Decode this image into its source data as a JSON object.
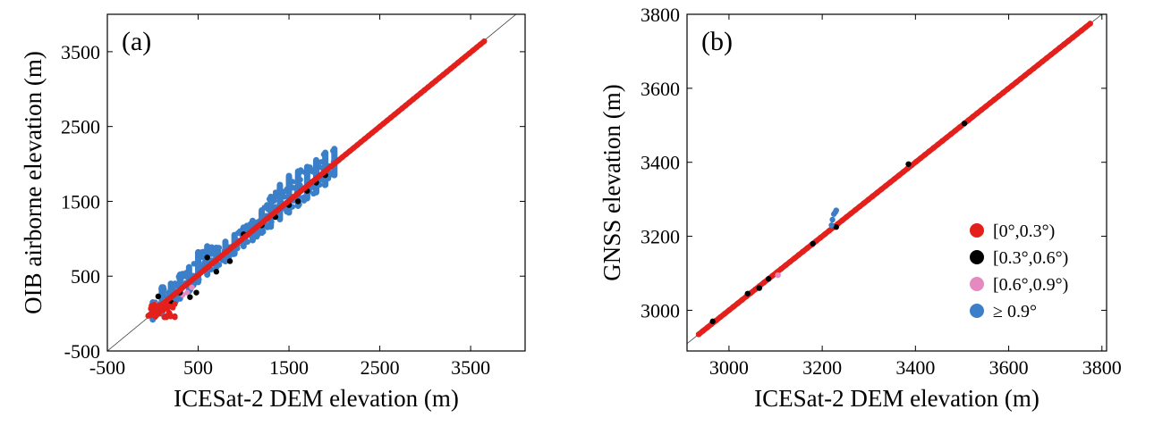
{
  "chart_data": [
    {
      "type": "scatter",
      "panel_label": "(a)",
      "xlabel": "ICESat-2 DEM elevation (m)",
      "ylabel": "OIB airborne elevation (m)",
      "xlim": [
        -500,
        4100
      ],
      "ylim": [
        -500,
        4000
      ],
      "xticks": [
        -500,
        500,
        1500,
        2500,
        3500
      ],
      "yticks": [
        -500,
        500,
        1500,
        2500,
        3500
      ],
      "reference_line": "1:1",
      "grid": false,
      "series": [
        {
          "name": "≥ 0.9°",
          "color": "#3a7fc8",
          "x": [
            0,
            100,
            200,
            300,
            400,
            500,
            600,
            700,
            800,
            900,
            1000,
            1100,
            1200,
            1300,
            1400,
            1500,
            1600,
            1700,
            1800,
            1900,
            2000
          ],
          "y_low": [
            -80,
            0,
            100,
            200,
            300,
            420,
            520,
            620,
            700,
            800,
            900,
            980,
            1080,
            1160,
            1260,
            1350,
            1440,
            1540,
            1620,
            1720,
            1850
          ],
          "y_high": [
            150,
            350,
            400,
            520,
            620,
            820,
            900,
            880,
            960,
            1050,
            1150,
            1240,
            1380,
            1560,
            1720,
            1840,
            1900,
            1960,
            2050,
            2150,
            2200
          ]
        },
        {
          "name": "[0.6°,0.9°)",
          "color": "#e58ac0",
          "x": [
            30,
            80,
            150,
            200,
            330,
            380,
            430
          ],
          "y": [
            120,
            60,
            170,
            220,
            250,
            280,
            350
          ]
        },
        {
          "name": "[0.3°,0.6°)",
          "color": "#000000",
          "x": [
            60,
            200,
            300,
            410,
            480,
            600,
            700,
            850,
            1000,
            1200,
            1350,
            1500,
            1600,
            1700,
            1800,
            1900
          ],
          "y": [
            230,
            150,
            280,
            220,
            280,
            750,
            560,
            700,
            1060,
            1180,
            1290,
            1450,
            1500,
            1640,
            1750,
            1850
          ]
        },
        {
          "name": "[0°,0.3°)",
          "color": "#e3201c",
          "x_range": [
            -50,
            3650
          ],
          "y_range": [
            -30,
            3640
          ]
        }
      ]
    },
    {
      "type": "scatter",
      "panel_label": "(b)",
      "xlabel": "ICESat-2 DEM elevation (m)",
      "ylabel": "GNSS elevation (m)",
      "xlim": [
        2910,
        3810
      ],
      "ylim": [
        2890,
        3800
      ],
      "xticks": [
        3000,
        3200,
        3400,
        3600,
        3800
      ],
      "yticks": [
        3000,
        3200,
        3400,
        3600,
        3800
      ],
      "reference_line": "1:1",
      "grid": false,
      "legend_position": "lower-right",
      "series": [
        {
          "name": "[0°,0.3°)",
          "color": "#e3201c",
          "x_range": [
            2935,
            3775
          ],
          "y_range": [
            2935,
            3775
          ]
        },
        {
          "name": "[0.3°,0.6°)",
          "color": "#000000",
          "x": [
            2965,
            3040,
            3065,
            3085,
            3180,
            3230,
            3385,
            3505
          ],
          "y": [
            2970,
            3045,
            3060,
            3085,
            3180,
            3225,
            3395,
            3505
          ]
        },
        {
          "name": "[0.6°,0.9°)",
          "color": "#e58ac0",
          "x": [
            3105
          ],
          "y": [
            3095
          ]
        },
        {
          "name": "≥ 0.9°",
          "color": "#3a7fc8",
          "x": [
            3220,
            3222,
            3225,
            3228,
            3230
          ],
          "y": [
            3230,
            3245,
            3260,
            3265,
            3270
          ]
        }
      ]
    }
  ]
}
